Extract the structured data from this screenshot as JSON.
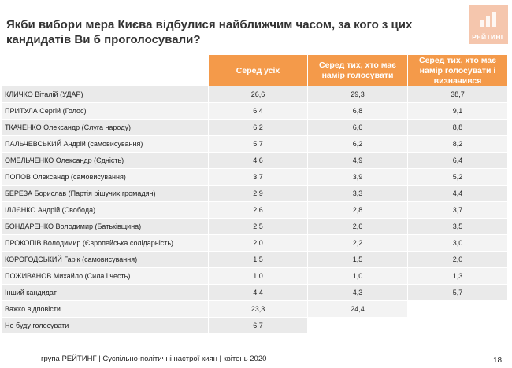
{
  "title": "Якби вибори мера Києва відбулися найближчим часом, за кого з цих кандидатів Ви б проголосували?",
  "logo": {
    "text": "РЕЙТИНГ",
    "color": "#f5c6ad"
  },
  "accent_color": "#f49a4a",
  "table": {
    "headers": [
      "Серед усіх",
      "Серед тих, хто має намір голосувати",
      "Серед тих, хто має намір голосувати і визначився"
    ],
    "rows": [
      {
        "name": "КЛИЧКО Віталій (УДАР)",
        "v1": "26,6",
        "v2": "29,3",
        "v3": "38,7"
      },
      {
        "name": "ПРИТУЛА Сергій (Голос)",
        "v1": "6,4",
        "v2": "6,8",
        "v3": "9,1"
      },
      {
        "name": "ТКАЧЕНКО Олександр (Слуга народу)",
        "v1": "6,2",
        "v2": "6,6",
        "v3": "8,8"
      },
      {
        "name": "ПАЛЬЧЕВСЬКИЙ Андрій (самовисування)",
        "v1": "5,7",
        "v2": "6,2",
        "v3": "8,2"
      },
      {
        "name": "ОМЕЛЬЧЕНКО Олександр (Єдність)",
        "v1": "4,6",
        "v2": "4,9",
        "v3": "6,4"
      },
      {
        "name": "ПОПОВ Олександр (самовисування)",
        "v1": "3,7",
        "v2": "3,9",
        "v3": "5,2"
      },
      {
        "name": "БЕРЕЗА Борислав (Партія рішучих громадян)",
        "v1": "2,9",
        "v2": "3,3",
        "v3": "4,4"
      },
      {
        "name": "ІЛЛЄНКО Андрій (Свобода)",
        "v1": "2,6",
        "v2": "2,8",
        "v3": "3,7"
      },
      {
        "name": "БОНДАРЕНКО Володимир (Батьківщина)",
        "v1": "2,5",
        "v2": "2,6",
        "v3": "3,5"
      },
      {
        "name": "ПРОКОПІВ Володимир (Європейська солідарність)",
        "v1": "2,0",
        "v2": "2,2",
        "v3": "3,0"
      },
      {
        "name": "КОРОГОДСЬКИЙ Гарік (самовисування)",
        "v1": "1,5",
        "v2": "1,5",
        "v3": "2,0"
      },
      {
        "name": "ПОЖИВАНОВ Михайло (Сила і честь)",
        "v1": "1,0",
        "v2": "1,0",
        "v3": "1,3"
      },
      {
        "name": "Інший кандидат",
        "v1": "4,4",
        "v2": "4,3",
        "v3": "5,7"
      },
      {
        "name": "Важко відповісти",
        "v1": "23,3",
        "v2": "24,4",
        "v3": ""
      },
      {
        "name": "Не буду голосувати",
        "v1": "6,7",
        "v2": "",
        "v3": ""
      }
    ]
  },
  "footer": "група РЕЙТИНГ | Суспільно-політичні настрої киян | квітень  2020",
  "page_number": "18"
}
